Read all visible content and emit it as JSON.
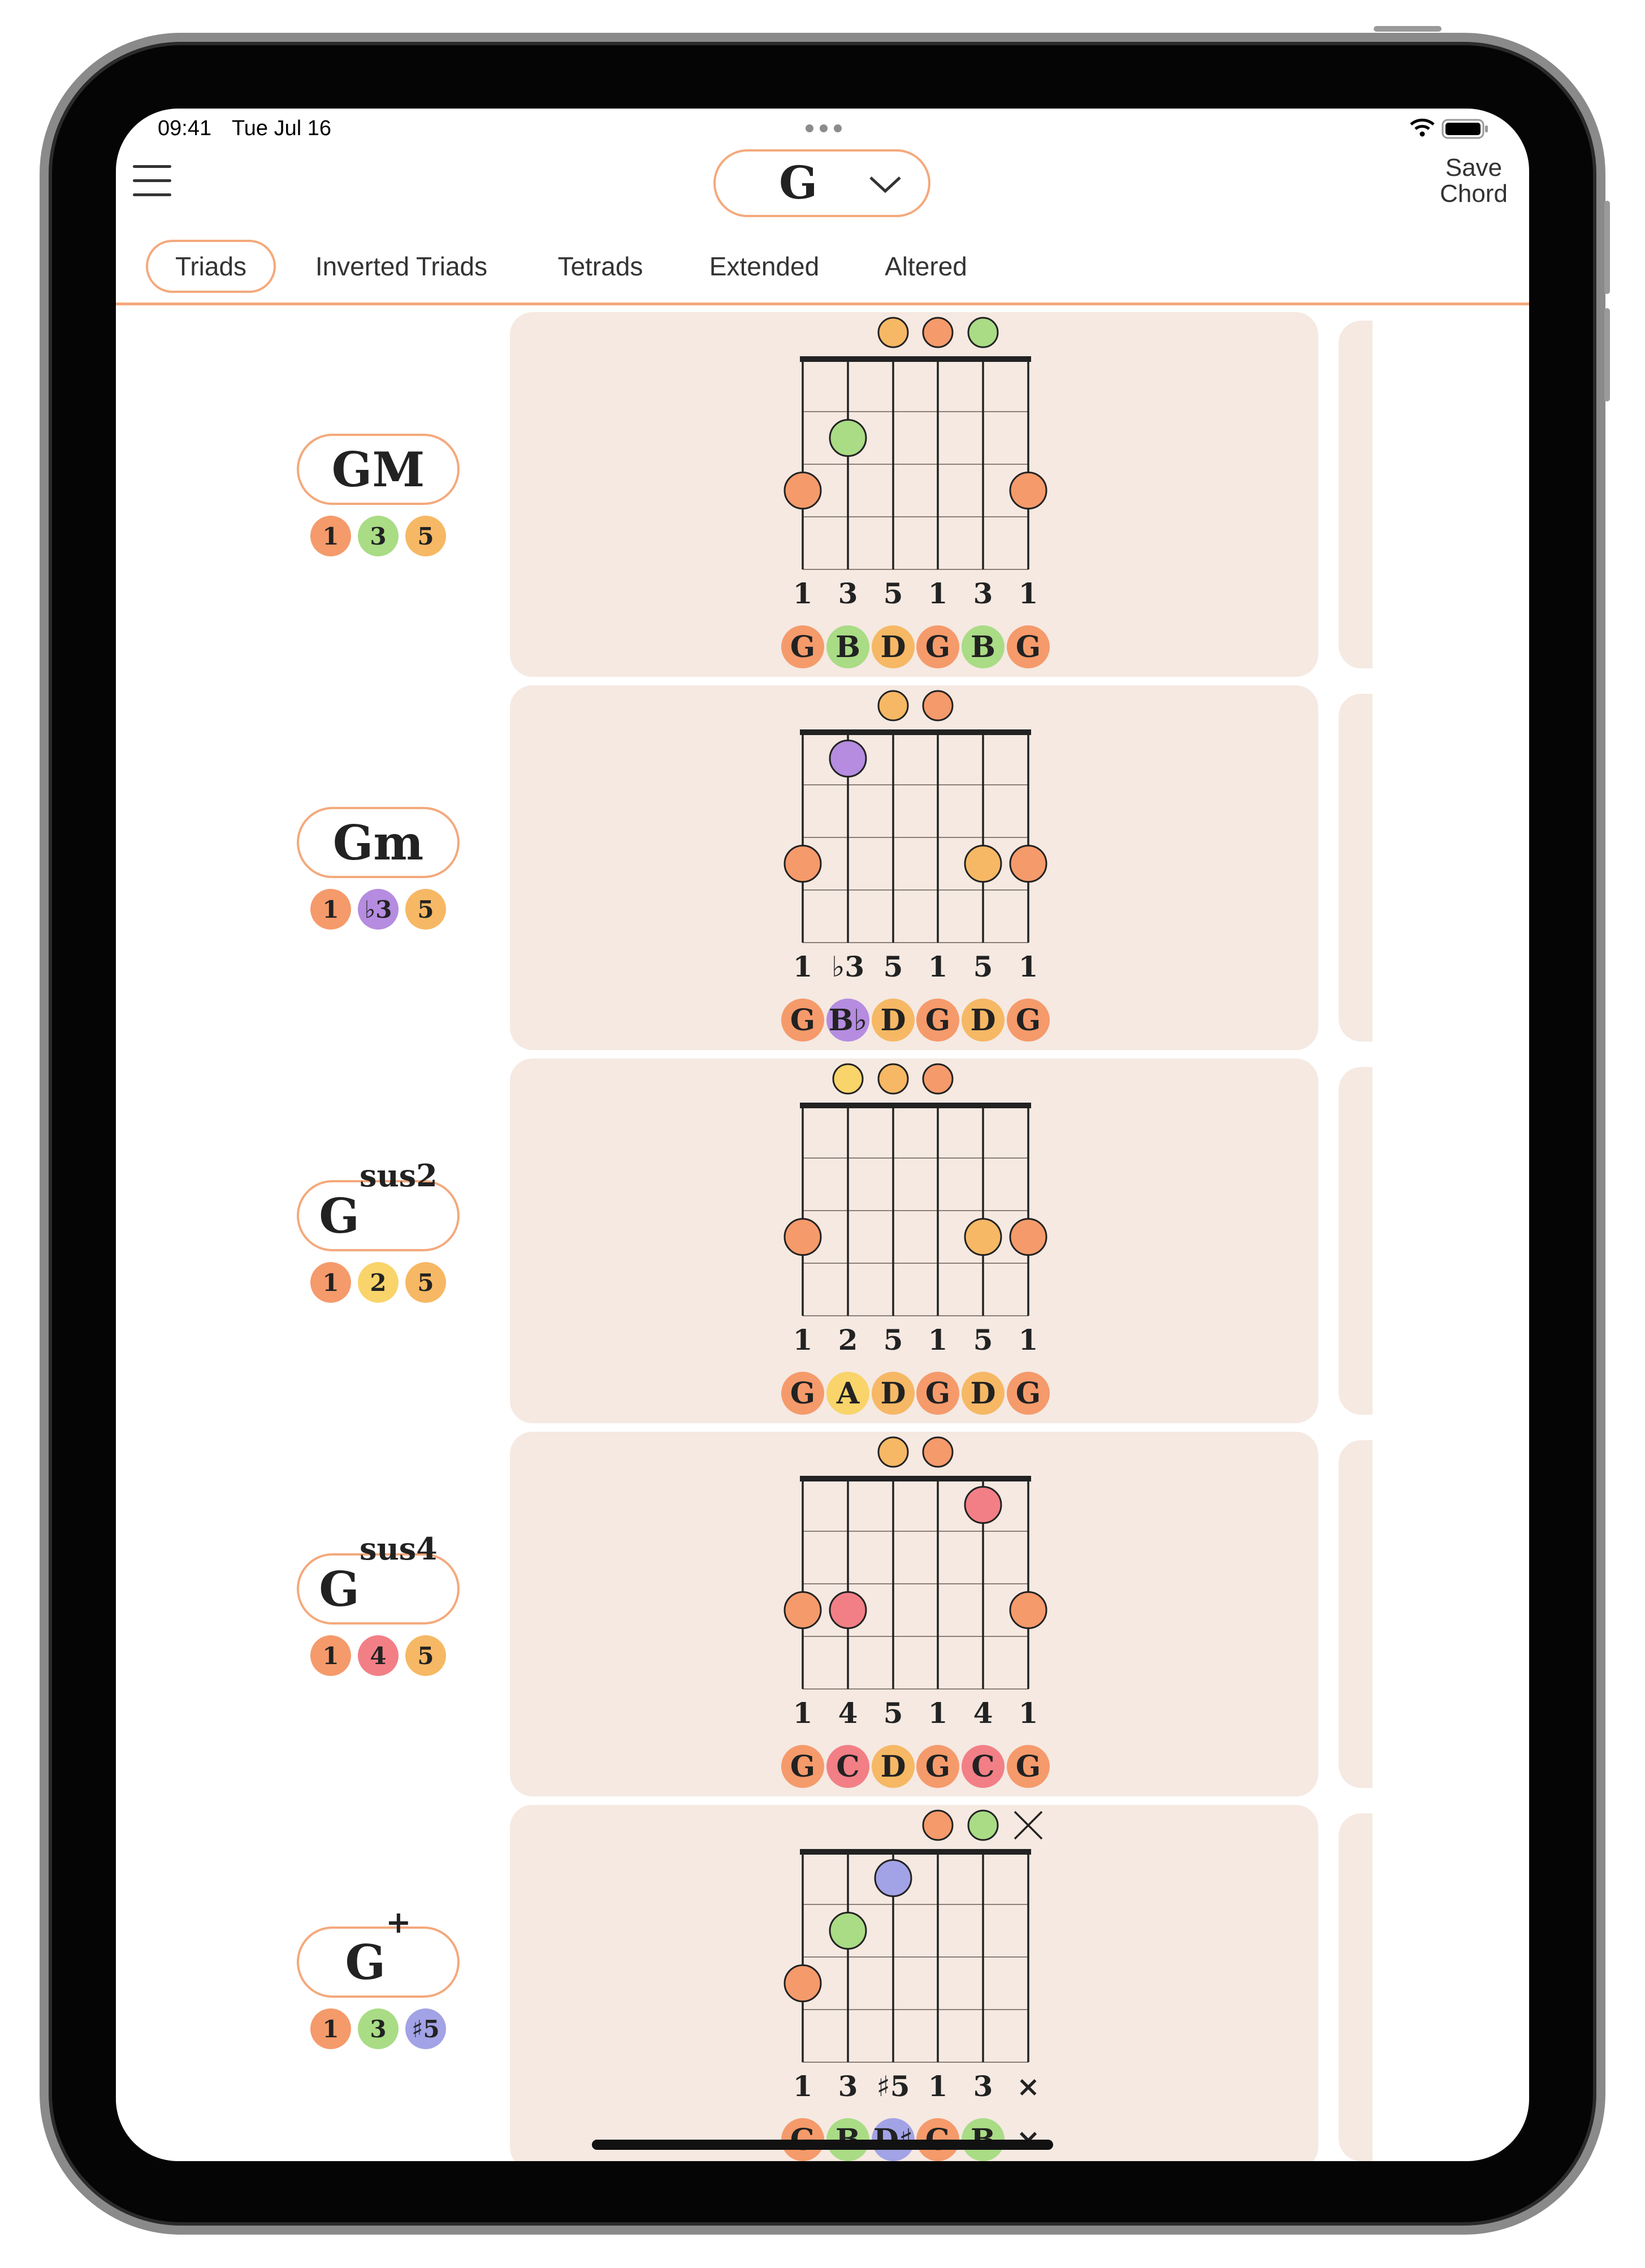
{
  "status": {
    "time": "09:41",
    "date": "Tue Jul 16"
  },
  "header": {
    "key": "G",
    "save_label_line1": "Save",
    "save_label_line2": "Chord"
  },
  "tabs": [
    {
      "label": "Triads",
      "active": true
    },
    {
      "label": "Inverted Triads",
      "active": false
    },
    {
      "label": "Tetrads",
      "active": false
    },
    {
      "label": "Extended",
      "active": false
    },
    {
      "label": "Altered",
      "active": false
    }
  ],
  "colors": {
    "root": "#f59a6b",
    "third": "#a9dc85",
    "fifth": "#f6b864",
    "minor_third": "#b58ce0",
    "second": "#f9d46a",
    "fourth": "#f27f86",
    "sharp_fifth": "#a2a2e6",
    "accent": "#f4a97c",
    "card": "#f5e9e2"
  },
  "chords": [
    {
      "name": "GM",
      "sup": "",
      "intervals": [
        {
          "t": "1",
          "c": "root"
        },
        {
          "t": "3",
          "c": "third"
        },
        {
          "t": "5",
          "c": "fifth"
        }
      ],
      "open": [
        {
          "s": 3,
          "c": "fifth"
        },
        {
          "s": 4,
          "c": "root"
        },
        {
          "s": 5,
          "c": "third"
        }
      ],
      "fretted": [
        {
          "s": 2,
          "f": 2,
          "c": "third"
        },
        {
          "s": 1,
          "f": 3,
          "c": "root"
        },
        {
          "s": 6,
          "f": 3,
          "c": "root"
        }
      ],
      "degrees": [
        {
          "t": "1"
        },
        {
          "t": "3"
        },
        {
          "t": "5"
        },
        {
          "t": "1"
        },
        {
          "t": "3"
        },
        {
          "t": "1"
        }
      ],
      "notes": [
        {
          "t": "G",
          "c": "root"
        },
        {
          "t": "B",
          "c": "third"
        },
        {
          "t": "D",
          "c": "fifth"
        },
        {
          "t": "G",
          "c": "root"
        },
        {
          "t": "B",
          "c": "third"
        },
        {
          "t": "G",
          "c": "root"
        }
      ]
    },
    {
      "name": "Gm",
      "sup": "",
      "intervals": [
        {
          "t": "1",
          "c": "root"
        },
        {
          "t": "♭3",
          "c": "minor_third"
        },
        {
          "t": "5",
          "c": "fifth"
        }
      ],
      "open": [
        {
          "s": 3,
          "c": "fifth"
        },
        {
          "s": 4,
          "c": "root"
        }
      ],
      "fretted": [
        {
          "s": 2,
          "f": 1,
          "c": "minor_third"
        },
        {
          "s": 1,
          "f": 3,
          "c": "root"
        },
        {
          "s": 5,
          "f": 3,
          "c": "fifth"
        },
        {
          "s": 6,
          "f": 3,
          "c": "root"
        }
      ],
      "degrees": [
        {
          "t": "1"
        },
        {
          "t": "♭3"
        },
        {
          "t": "5"
        },
        {
          "t": "1"
        },
        {
          "t": "5"
        },
        {
          "t": "1"
        }
      ],
      "notes": [
        {
          "t": "G",
          "c": "root"
        },
        {
          "t": "B♭",
          "c": "minor_third"
        },
        {
          "t": "D",
          "c": "fifth"
        },
        {
          "t": "G",
          "c": "root"
        },
        {
          "t": "D",
          "c": "fifth"
        },
        {
          "t": "G",
          "c": "root"
        }
      ]
    },
    {
      "name": "G",
      "sup": "sus2",
      "intervals": [
        {
          "t": "1",
          "c": "root"
        },
        {
          "t": "2",
          "c": "second"
        },
        {
          "t": "5",
          "c": "fifth"
        }
      ],
      "open": [
        {
          "s": 2,
          "c": "second"
        },
        {
          "s": 3,
          "c": "fifth"
        },
        {
          "s": 4,
          "c": "root"
        }
      ],
      "fretted": [
        {
          "s": 1,
          "f": 3,
          "c": "root"
        },
        {
          "s": 5,
          "f": 3,
          "c": "fifth"
        },
        {
          "s": 6,
          "f": 3,
          "c": "root"
        }
      ],
      "degrees": [
        {
          "t": "1"
        },
        {
          "t": "2"
        },
        {
          "t": "5"
        },
        {
          "t": "1"
        },
        {
          "t": "5"
        },
        {
          "t": "1"
        }
      ],
      "notes": [
        {
          "t": "G",
          "c": "root"
        },
        {
          "t": "A",
          "c": "second"
        },
        {
          "t": "D",
          "c": "fifth"
        },
        {
          "t": "G",
          "c": "root"
        },
        {
          "t": "D",
          "c": "fifth"
        },
        {
          "t": "G",
          "c": "root"
        }
      ]
    },
    {
      "name": "G",
      "sup": "sus4",
      "intervals": [
        {
          "t": "1",
          "c": "root"
        },
        {
          "t": "4",
          "c": "fourth"
        },
        {
          "t": "5",
          "c": "fifth"
        }
      ],
      "open": [
        {
          "s": 3,
          "c": "fifth"
        },
        {
          "s": 4,
          "c": "root"
        }
      ],
      "fretted": [
        {
          "s": 5,
          "f": 1,
          "c": "fourth"
        },
        {
          "s": 1,
          "f": 3,
          "c": "root"
        },
        {
          "s": 2,
          "f": 3,
          "c": "fourth"
        },
        {
          "s": 6,
          "f": 3,
          "c": "root"
        }
      ],
      "degrees": [
        {
          "t": "1"
        },
        {
          "t": "4"
        },
        {
          "t": "5"
        },
        {
          "t": "1"
        },
        {
          "t": "4"
        },
        {
          "t": "1"
        }
      ],
      "notes": [
        {
          "t": "G",
          "c": "root"
        },
        {
          "t": "C",
          "c": "fourth"
        },
        {
          "t": "D",
          "c": "fifth"
        },
        {
          "t": "G",
          "c": "root"
        },
        {
          "t": "C",
          "c": "fourth"
        },
        {
          "t": "G",
          "c": "root"
        }
      ]
    },
    {
      "name": "G",
      "sup": "+",
      "intervals": [
        {
          "t": "1",
          "c": "root"
        },
        {
          "t": "3",
          "c": "third"
        },
        {
          "t": "♯5",
          "c": "sharp_fifth"
        }
      ],
      "open": [
        {
          "s": 4,
          "c": "root"
        },
        {
          "s": 5,
          "c": "third"
        }
      ],
      "muted": [
        6
      ],
      "fretted": [
        {
          "s": 3,
          "f": 1,
          "c": "sharp_fifth"
        },
        {
          "s": 2,
          "f": 2,
          "c": "third"
        },
        {
          "s": 1,
          "f": 3,
          "c": "root"
        }
      ],
      "degrees": [
        {
          "t": "1"
        },
        {
          "t": "3"
        },
        {
          "t": "♯5"
        },
        {
          "t": "1"
        },
        {
          "t": "3"
        },
        {
          "t": "×"
        }
      ],
      "notes": [
        {
          "t": "G",
          "c": "root"
        },
        {
          "t": "B",
          "c": "third"
        },
        {
          "t": "D♯",
          "c": "sharp_fifth"
        },
        {
          "t": "G",
          "c": "root"
        },
        {
          "t": "B",
          "c": "third"
        },
        {
          "t": "×",
          "c": ""
        }
      ]
    }
  ]
}
